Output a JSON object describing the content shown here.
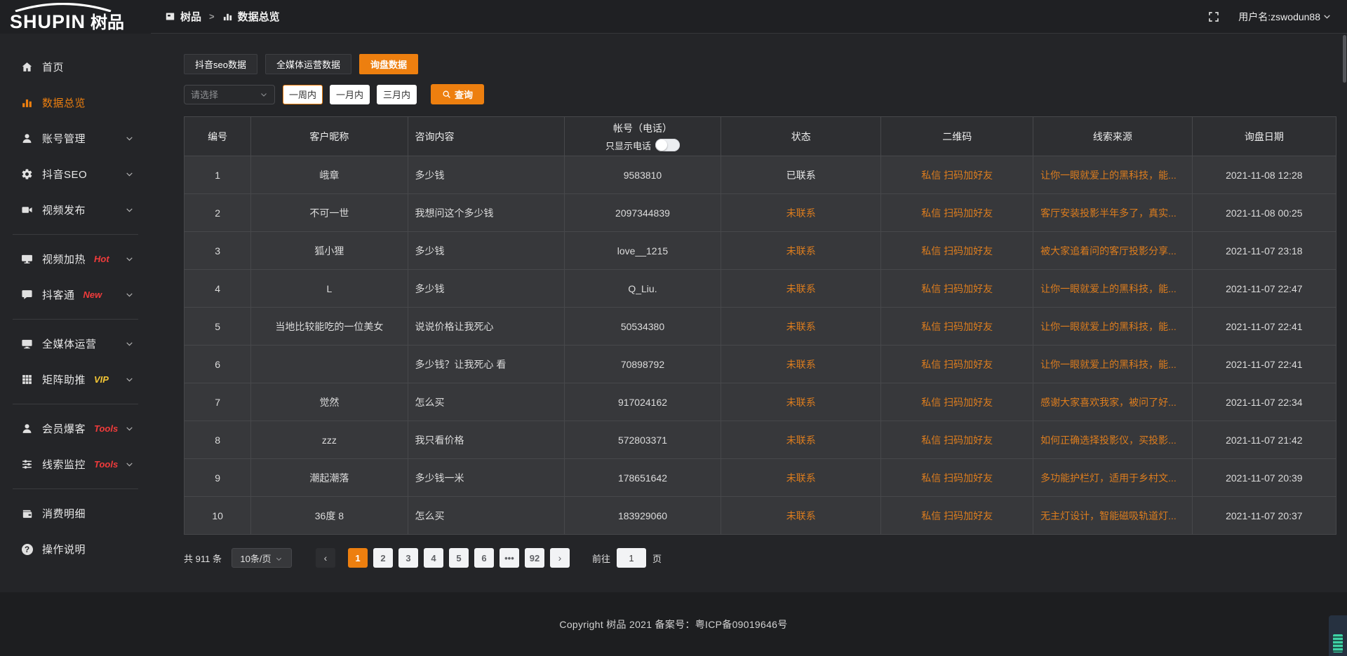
{
  "header": {
    "logo_en": "SHUPIN",
    "logo_cn": "树品",
    "breadcrumb": {
      "root": "树品",
      "separator": ">",
      "current": "数据总览"
    },
    "user_label": "用户名: ",
    "username": "zswodun88"
  },
  "sidebar": {
    "items": [
      {
        "key": "home",
        "label": "首页",
        "icon": "home",
        "chevron": false,
        "active": false
      },
      {
        "key": "data-overview",
        "label": "数据总览",
        "icon": "chart",
        "chevron": false,
        "active": true
      },
      {
        "key": "account-management",
        "label": "账号管理",
        "icon": "user",
        "chevron": true
      },
      {
        "key": "douyin-seo",
        "label": "抖音SEO",
        "icon": "gear",
        "chevron": true
      },
      {
        "key": "video-publish",
        "label": "视频发布",
        "icon": "video",
        "chevron": true
      },
      {
        "divider": true
      },
      {
        "key": "video-heating",
        "label": "视频加热",
        "icon": "display",
        "badge": "Hot",
        "badge_color": "red",
        "chevron": true
      },
      {
        "key": "douketong",
        "label": "抖客通",
        "icon": "chat",
        "badge": "New",
        "badge_color": "red",
        "chevron": true
      },
      {
        "divider": true
      },
      {
        "key": "media-operation",
        "label": "全媒体运营",
        "icon": "monitor",
        "chevron": true
      },
      {
        "key": "matrix-boost",
        "label": "矩阵助推",
        "icon": "grid",
        "badge": "VIP",
        "badge_color": "yellow",
        "chevron": true
      },
      {
        "divider": true
      },
      {
        "key": "member-baoke",
        "label": "会员爆客",
        "icon": "person",
        "badge": "Tools",
        "badge_color": "red",
        "chevron": true
      },
      {
        "key": "clue-monitor",
        "label": "线索监控",
        "icon": "sliders",
        "badge": "Tools",
        "badge_color": "red",
        "chevron": true
      },
      {
        "divider": true
      },
      {
        "key": "consumption-detail",
        "label": "消费明细",
        "icon": "wallet",
        "chevron": false
      },
      {
        "key": "operation-guide",
        "label": "操作说明",
        "icon": "question",
        "chevron": false
      }
    ]
  },
  "tabs": [
    {
      "label": "抖音seo数据",
      "active": false
    },
    {
      "label": "全媒体运营数据",
      "active": false
    },
    {
      "label": "询盘数据",
      "active": true
    }
  ],
  "filters": {
    "select_placeholder": "请选择",
    "ranges": [
      {
        "label": "一周内",
        "active": true
      },
      {
        "label": "一月内",
        "active": false
      },
      {
        "label": "三月内",
        "active": false
      }
    ],
    "search_label": "查询"
  },
  "table": {
    "headers": {
      "id": "编号",
      "nickname": "客户昵称",
      "content": "咨询内容",
      "account": "帐号（电话）",
      "phone_toggle_label": "只显示电话",
      "status": "状态",
      "qrcode": "二维码",
      "source": "线索来源",
      "date": "询盘日期"
    },
    "rows": [
      {
        "id": "1",
        "nickname": "峨章",
        "content": "多少钱",
        "account": "9583810",
        "status": "已联系",
        "status_type": "contacted",
        "qr": "私信 扫码加好友",
        "source": "让你一眼就爱上的黑科技，能...",
        "date": "2021-11-08 12:28"
      },
      {
        "id": "2",
        "nickname": "不可一世",
        "content": "我想问这个多少钱",
        "account": "2097344839",
        "status": "未联系",
        "status_type": "uncontacted",
        "qr": "私信 扫码加好友",
        "source": "客厅安装投影半年多了，真实...",
        "date": "2021-11-08 00:25"
      },
      {
        "id": "3",
        "nickname": "狐小狸",
        "content": "多少钱",
        "account": "love__1215",
        "status": "未联系",
        "status_type": "uncontacted",
        "qr": "私信 扫码加好友",
        "source": "被大家追着问的客厅投影分享...",
        "date": "2021-11-07 23:18"
      },
      {
        "id": "4",
        "nickname": "L",
        "content": "多少钱",
        "account": "Q_Liu.",
        "status": "未联系",
        "status_type": "uncontacted",
        "qr": "私信 扫码加好友",
        "source": "让你一眼就爱上的黑科技，能...",
        "date": "2021-11-07 22:47"
      },
      {
        "id": "5",
        "nickname": "当地比较能吃的一位美女",
        "content": "说说价格让我死心",
        "account": "50534380",
        "status": "未联系",
        "status_type": "uncontacted",
        "qr": "私信 扫码加好友",
        "source": "让你一眼就爱上的黑科技，能...",
        "date": "2021-11-07 22:41"
      },
      {
        "id": "6",
        "nickname": "",
        "content": "多少钱？让我死心 看",
        "account": "70898792",
        "status": "未联系",
        "status_type": "uncontacted",
        "qr": "私信 扫码加好友",
        "source": "让你一眼就爱上的黑科技，能...",
        "date": "2021-11-07 22:41"
      },
      {
        "id": "7",
        "nickname": "觉然",
        "content": "怎么买",
        "account": "917024162",
        "status": "未联系",
        "status_type": "uncontacted",
        "qr": "私信 扫码加好友",
        "source": "感谢大家喜欢我家，被问了好...",
        "date": "2021-11-07 22:34"
      },
      {
        "id": "8",
        "nickname": "zzz",
        "content": "我只看价格",
        "account": "572803371",
        "status": "未联系",
        "status_type": "uncontacted",
        "qr": "私信 扫码加好友",
        "source": "如何正确选择投影仪，买投影...",
        "date": "2021-11-07 21:42"
      },
      {
        "id": "9",
        "nickname": "潮起潮落",
        "content": "多少钱一米",
        "account": "178651642",
        "status": "未联系",
        "status_type": "uncontacted",
        "qr": "私信 扫码加好友",
        "source": "多功能护栏灯，适用于乡村文...",
        "date": "2021-11-07 20:39"
      },
      {
        "id": "10",
        "nickname": "36度 8",
        "content": "怎么买",
        "account": "183929060",
        "status": "未联系",
        "status_type": "uncontacted",
        "qr": "私信 扫码加好友",
        "source": "无主灯设计，智能磁吸轨道灯...",
        "date": "2021-11-07 20:37"
      }
    ]
  },
  "pagination": {
    "total_label": "共 911 条",
    "page_size": "10条/页",
    "prev": "‹",
    "next": "›",
    "pages": [
      {
        "label": "1",
        "active": true
      },
      {
        "label": "2"
      },
      {
        "label": "3"
      },
      {
        "label": "4"
      },
      {
        "label": "5"
      },
      {
        "label": "6"
      },
      {
        "label": "•••",
        "ellipsis": true
      },
      {
        "label": "92"
      }
    ],
    "goto_label": "前往",
    "goto_value": "1",
    "page_suffix": "页"
  },
  "footer": {
    "copyright": "Copyright 树品 2021 备案号：粤ICP备09019646号"
  },
  "colors": {
    "accent": "#ed7f0f",
    "link": "#dd7d1e",
    "badge_red": "#f03b3b",
    "badge_vip": "#f2c535",
    "table_row": "#37383b"
  }
}
